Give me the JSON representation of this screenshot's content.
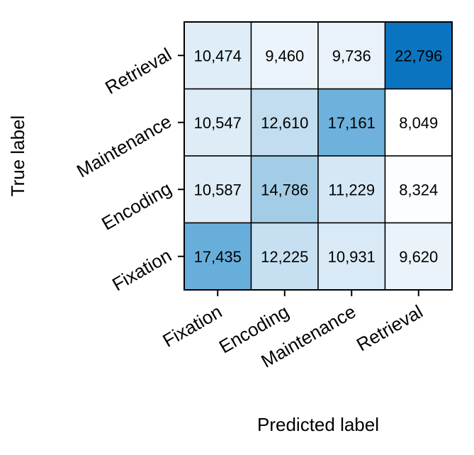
{
  "chart_data": {
    "type": "heatmap",
    "title": "",
    "xlabel": "Predicted label",
    "ylabel": "True label",
    "x_categories": [
      "Fixation",
      "Encoding",
      "Maintenance",
      "Retrieval"
    ],
    "y_categories_top_to_bottom": [
      "Retrieval",
      "Maintenance",
      "Encoding",
      "Fixation"
    ],
    "cells_top_to_bottom": [
      {
        "true": "Retrieval",
        "values": [
          10474,
          9460,
          9736,
          22796
        ],
        "labels": [
          "10,474",
          "9,460",
          "9,736",
          "22,796"
        ]
      },
      {
        "true": "Maintenance",
        "values": [
          10547,
          12610,
          17161,
          8049
        ],
        "labels": [
          "10,547",
          "12,610",
          "17,161",
          "8,049"
        ]
      },
      {
        "true": "Encoding",
        "values": [
          10587,
          14786,
          11229,
          8324
        ],
        "labels": [
          "10,587",
          "14,786",
          "11,229",
          "8,324"
        ]
      },
      {
        "true": "Fixation",
        "values": [
          17435,
          12225,
          10931,
          9620
        ],
        "labels": [
          "17,435",
          "12,225",
          "10,931",
          "9,620"
        ]
      }
    ],
    "colormap": {
      "low": "#ffffff",
      "high": "#0a74c0"
    },
    "grid": false,
    "legend": "none"
  }
}
